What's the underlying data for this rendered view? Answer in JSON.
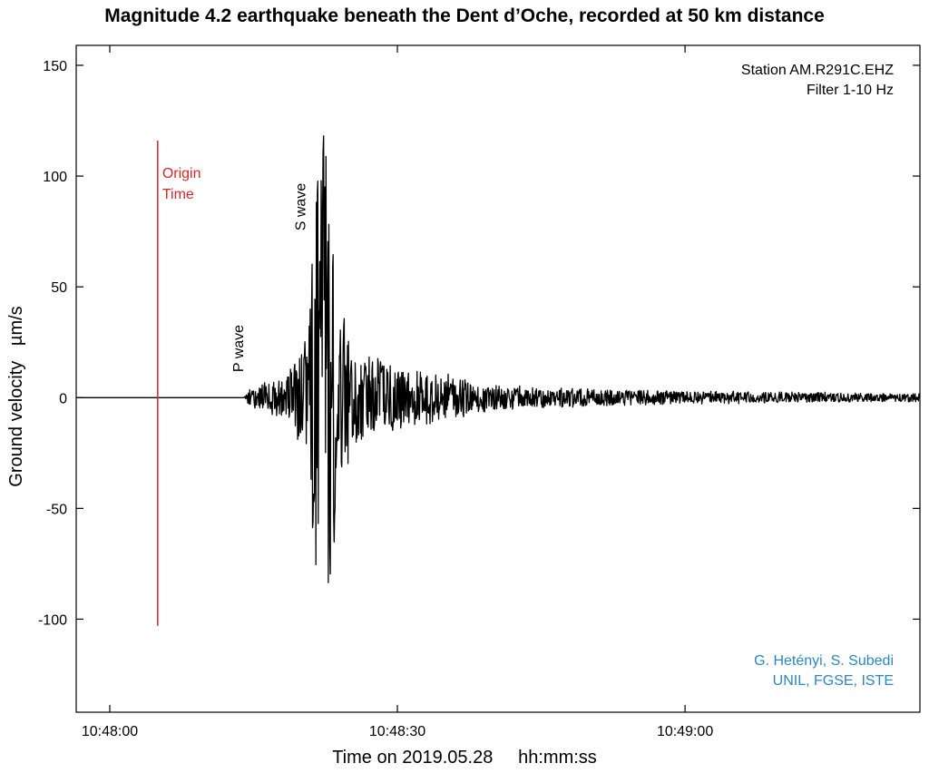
{
  "chart_data": {
    "type": "line",
    "title": "Magnitude 4.2 earthquake beneath the Dent d’Oche, recorded at 50 km distance",
    "xlabel": "Time on 2019.05.28     hh:mm:ss",
    "ylabel": "Ground velocity   µm/s",
    "x_ticks": [
      {
        "t": 0,
        "label": "10:48:00"
      },
      {
        "t": 30,
        "label": "10:48:30"
      },
      {
        "t": 60,
        "label": "10:49:00"
      }
    ],
    "y_ticks": [
      150,
      100,
      50,
      0,
      -50,
      -100
    ],
    "xlim_seconds_after_10_48_00": [
      -3.5,
      84.5
    ],
    "ylim": [
      -142,
      159
    ],
    "grid": false,
    "station_text": "Station AM.R291C.EHZ",
    "filter_text": "Filter 1-10 Hz",
    "credit_line1": "G. Hetényi, S. Subedi",
    "credit_line2": "UNIL, FGSE, ISTE",
    "origin_time": {
      "label_line1": "Origin",
      "label_line2": "Time",
      "t": 5,
      "ymin": -103,
      "ymax": 116,
      "color": "#d62728"
    },
    "p_wave": {
      "label": "P wave",
      "t": 14.2
    },
    "s_wave": {
      "label": "S wave",
      "t": 21.8
    },
    "credit_color": "#2e86c1",
    "trace_color": "#000000",
    "trace_envelope": {
      "t": [
        -3.5,
        14.0,
        14.6,
        16,
        18,
        19.5,
        20.5,
        21.3,
        22.0,
        22.3,
        23,
        24,
        25,
        26,
        27,
        29,
        31,
        33,
        35,
        37.5,
        40,
        45,
        50,
        55,
        60,
        65,
        70,
        75,
        80,
        84.5
      ],
      "amp": [
        0,
        0,
        4,
        7,
        9,
        18,
        32,
        70,
        130,
        125,
        80,
        45,
        33,
        26,
        20,
        16,
        14,
        13,
        11,
        8,
        6,
        5,
        4,
        3.5,
        3,
        3,
        2.5,
        2.5,
        2,
        2
      ]
    }
  }
}
